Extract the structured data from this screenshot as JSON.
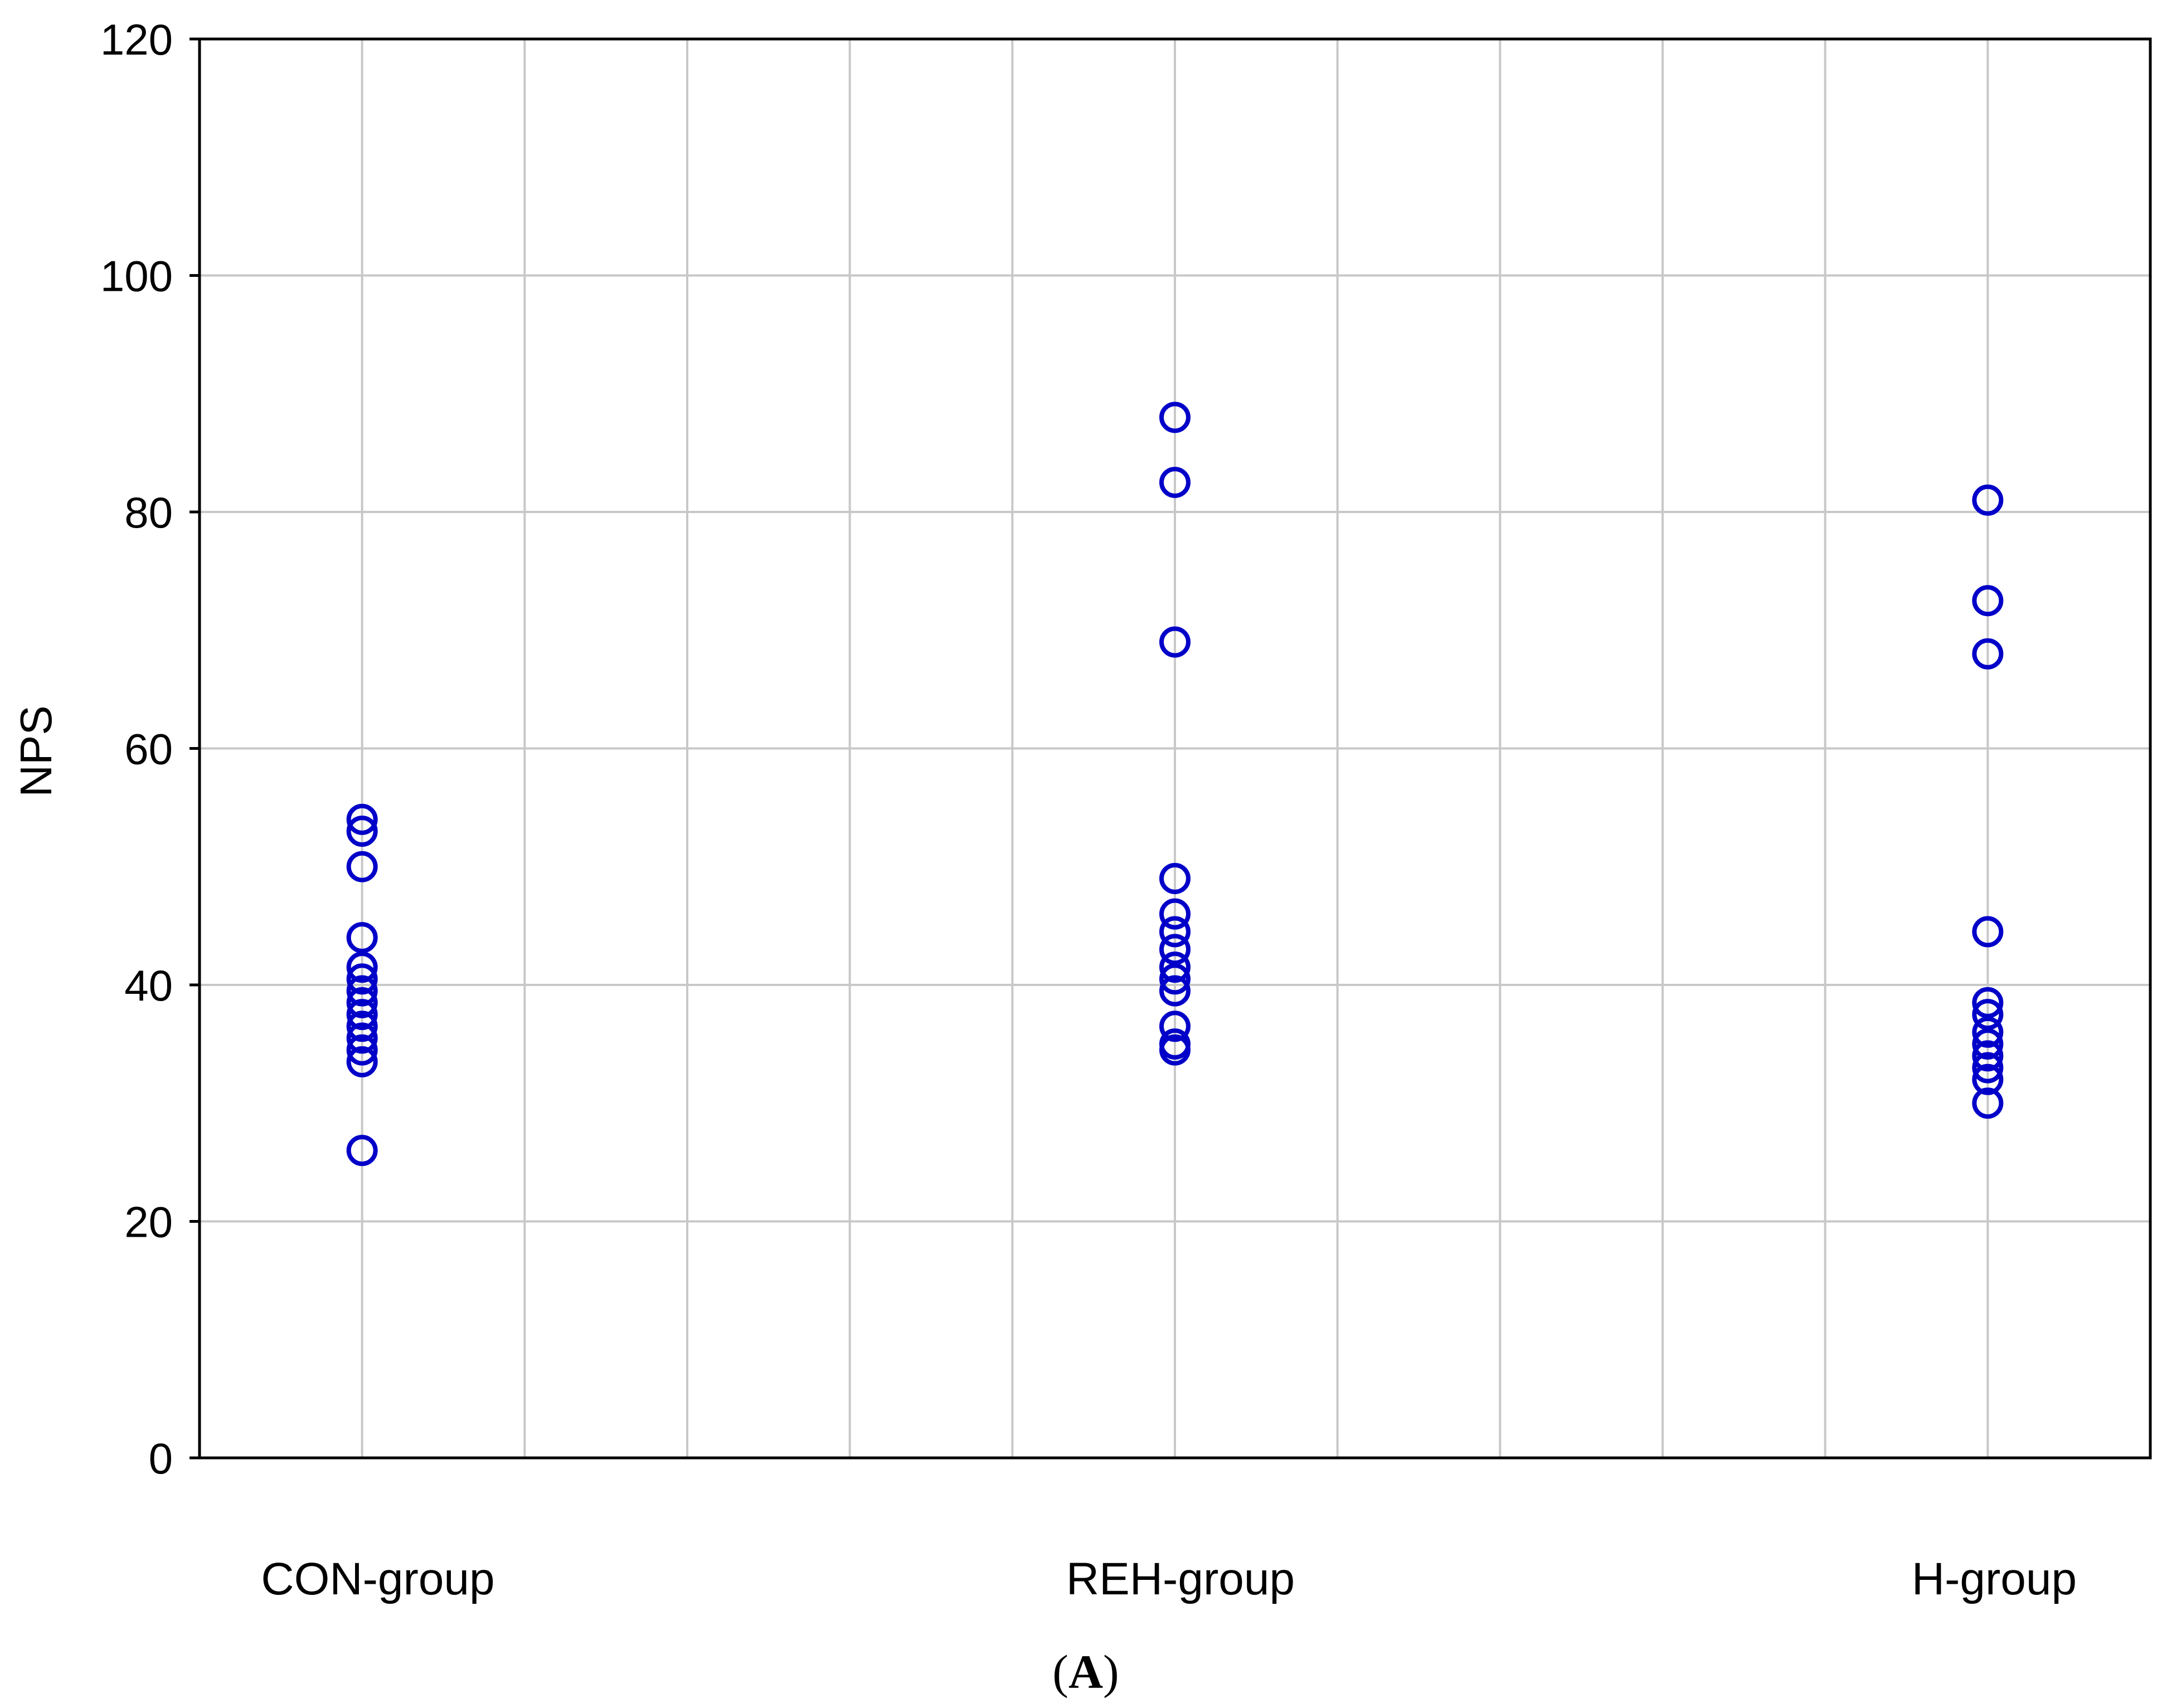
{
  "chart_data": {
    "type": "scatter",
    "title": "",
    "xlabel": "",
    "ylabel": "NPS",
    "ylim": [
      0,
      120
    ],
    "yticks": [
      0,
      20,
      40,
      60,
      80,
      100,
      120
    ],
    "grid": true,
    "marker": "open-circle",
    "colors": {
      "marker": "#0000c8",
      "grid": "#c8c8c8",
      "axis": "#000000"
    },
    "categories": [
      "CON-group",
      "REH-group",
      "H-group"
    ],
    "points": [
      {
        "category": "CON-group",
        "values": [
          54,
          53,
          50,
          44,
          41.5,
          40.5,
          39.5,
          38.5,
          37.5,
          36.5,
          35.5,
          34.5,
          33.5,
          26
        ]
      },
      {
        "category": "REH-group",
        "values": [
          88,
          82.5,
          69,
          49,
          46,
          44.5,
          43,
          41.5,
          40.5,
          39.5,
          36.5,
          35,
          34.5
        ]
      },
      {
        "category": "H-group",
        "values": [
          81,
          72.5,
          68,
          44.5,
          38.5,
          37.5,
          36,
          35,
          34,
          33,
          32,
          30
        ]
      }
    ],
    "panel_label": {
      "open": "(",
      "letter": "A",
      "close": ")"
    }
  }
}
